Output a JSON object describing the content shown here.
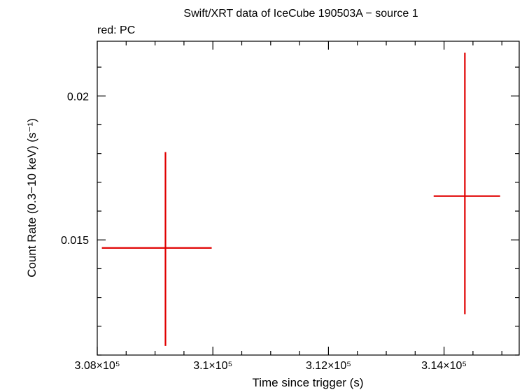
{
  "chart_data": {
    "type": "scatter",
    "title": "Swift/XRT data of IceCube 190503A − source 1",
    "subtitle": "red: PC",
    "xlabel": "Time since trigger (s)",
    "ylabel": "Count Rate (0.3−10 keV) (s⁻¹)",
    "xlim": [
      308000,
      315300
    ],
    "ylim": [
      0.011,
      0.0219
    ],
    "x_ticks": [
      {
        "value": 308000,
        "label": "3.08×10⁵"
      },
      {
        "value": 310000,
        "label": "3.1×10⁵"
      },
      {
        "value": 312000,
        "label": "3.12×10⁵"
      },
      {
        "value": 314000,
        "label": "3.14×10⁵"
      }
    ],
    "y_ticks": [
      {
        "value": 0.015,
        "label": "0.015"
      },
      {
        "value": 0.02,
        "label": "0.02"
      }
    ],
    "grid": false,
    "series": [
      {
        "name": "PC",
        "color": "#e00000",
        "points": [
          {
            "x": 309180,
            "x_lo": 308080,
            "x_hi": 309980,
            "y": 0.01472,
            "y_lo": 0.01132,
            "y_hi": 0.01805
          },
          {
            "x": 314360,
            "x_lo": 313820,
            "x_hi": 314970,
            "y": 0.01652,
            "y_lo": 0.01242,
            "y_hi": 0.0215
          }
        ]
      }
    ]
  }
}
